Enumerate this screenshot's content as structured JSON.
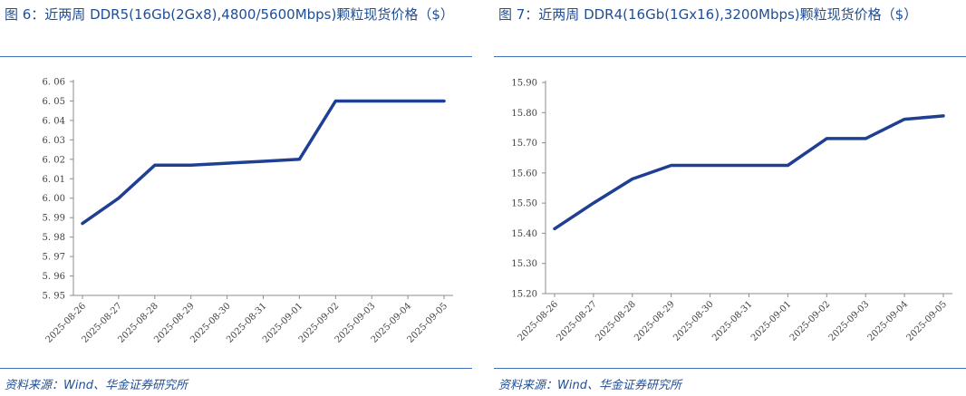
{
  "panels": [
    {
      "title": "图 6：近两周 DDR5(16Gb(2Gx8),4800/5600Mbps)颗粒现货价格（$）",
      "source": "资料来源：Wind、华金证券研究所"
    },
    {
      "title": "图 7：近两周 DDR4(16Gb(1Gx16),3200Mbps)颗粒现货价格（$）",
      "source": "资料来源：Wind、华金证券研究所"
    }
  ],
  "chart_data": [
    {
      "type": "line",
      "title": "",
      "xlabel": "",
      "ylabel": "",
      "x": [
        "2025-08-26",
        "2025-08-27",
        "2025-08-28",
        "2025-08-29",
        "2025-08-30",
        "2025-08-31",
        "2025-09-01",
        "2025-09-02",
        "2025-09-03",
        "2025-09-04",
        "2025-09-05"
      ],
      "series": [
        {
          "values": [
            5.987,
            6.0,
            6.017,
            6.017,
            6.018,
            6.019,
            6.02,
            6.05,
            6.05,
            6.05,
            6.05
          ]
        }
      ],
      "ylim": [
        5.95,
        6.06
      ],
      "yticks": [
        "5. 95",
        "5. 96",
        "5. 97",
        "5. 98",
        "5. 99",
        "6. 00",
        "6. 01",
        "6. 02",
        "6. 03",
        "6. 04",
        "6. 05",
        "6. 06"
      ],
      "ytick_values": [
        5.95,
        5.96,
        5.97,
        5.98,
        5.99,
        6.0,
        6.01,
        6.02,
        6.03,
        6.04,
        6.05,
        6.06
      ],
      "grid": false,
      "legend": "none",
      "line_color": "#1f3f94"
    },
    {
      "type": "line",
      "title": "",
      "xlabel": "",
      "ylabel": "",
      "x": [
        "2025-08-26",
        "2025-08-27",
        "2025-08-28",
        "2025-08-29",
        "2025-08-30",
        "2025-08-31",
        "2025-09-01",
        "2025-09-02",
        "2025-09-03",
        "2025-09-04",
        "2025-09-05"
      ],
      "series": [
        {
          "values": [
            15.415,
            15.5,
            15.58,
            15.625,
            15.625,
            15.625,
            15.625,
            15.714,
            15.714,
            15.778,
            15.789
          ]
        }
      ],
      "ylim": [
        15.2,
        15.9
      ],
      "yticks": [
        "15.20",
        "15.30",
        "15.40",
        "15.50",
        "15.60",
        "15.70",
        "15.80",
        "15.90"
      ],
      "ytick_values": [
        15.2,
        15.3,
        15.4,
        15.5,
        15.6,
        15.7,
        15.8,
        15.9
      ],
      "grid": false,
      "legend": "none",
      "line_color": "#1f3f94"
    }
  ]
}
